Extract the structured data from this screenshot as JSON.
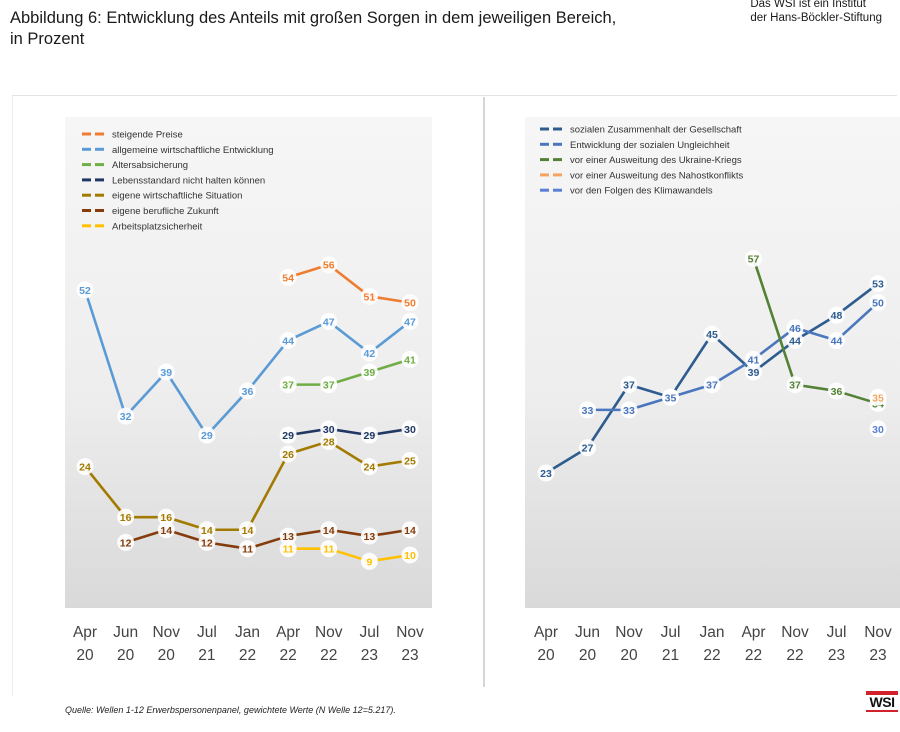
{
  "title": "Abbildung 6: Entwicklung des Anteils mit großen Sorgen in dem jeweiligen Bereich,",
  "title_line2": "in Prozent",
  "header_note_line1": "Das WSI ist ein Institut",
  "header_note_line2": "der Hans-Böckler-Stiftung",
  "source": "Quelle: Wellen 1-12 Erwerbspersonenpanel, gewichtete Werte (N Welle 12=5.217).",
  "logo_text": "WSI",
  "chart_data": [
    {
      "type": "line",
      "categories": [
        [
          "Apr",
          "20"
        ],
        [
          "Jun",
          "20"
        ],
        [
          "Nov",
          "20"
        ],
        [
          "Jul",
          "21"
        ],
        [
          "Jan",
          "22"
        ],
        [
          "Apr",
          "22"
        ],
        [
          "Nov",
          "22"
        ],
        [
          "Jul",
          "23"
        ],
        [
          "Nov",
          "23"
        ]
      ],
      "ylim": [
        0,
        70
      ],
      "legend_position": "top-left",
      "grid": false,
      "series": [
        {
          "name": "steigende Preise",
          "color": "#ee7d31",
          "values": [
            null,
            null,
            null,
            null,
            null,
            54,
            56,
            51,
            50
          ]
        },
        {
          "name": "allgemeine wirtschaftliche Entwicklung",
          "color": "#5b9bd5",
          "values": [
            52,
            32,
            39,
            29,
            36,
            44,
            47,
            42,
            47
          ]
        },
        {
          "name": "Altersabsicherung",
          "color": "#70ad47",
          "values": [
            null,
            null,
            null,
            null,
            null,
            37,
            37,
            39,
            41
          ]
        },
        {
          "name": "Lebensstandard nicht halten können",
          "color": "#203864",
          "values": [
            null,
            null,
            null,
            null,
            null,
            29,
            30,
            29,
            30
          ]
        },
        {
          "name": "eigene wirtschaftliche Situation",
          "color": "#a37a00",
          "values": [
            24,
            16,
            16,
            14,
            14,
            26,
            28,
            24,
            25
          ]
        },
        {
          "name": "eigene berufliche Zukunft",
          "color": "#843c0c",
          "values": [
            null,
            12,
            14,
            12,
            11,
            13,
            14,
            13,
            14
          ]
        },
        {
          "name": "Arbeitsplatzsicherheit",
          "color": "#ffc000",
          "values": [
            null,
            null,
            null,
            null,
            null,
            11,
            11,
            9,
            10
          ]
        }
      ]
    },
    {
      "type": "line",
      "categories": [
        [
          "Apr",
          "20"
        ],
        [
          "Jun",
          "20"
        ],
        [
          "Nov",
          "20"
        ],
        [
          "Jul",
          "21"
        ],
        [
          "Jan",
          "22"
        ],
        [
          "Apr",
          "22"
        ],
        [
          "Nov",
          "22"
        ],
        [
          "Jul",
          "23"
        ],
        [
          "Nov",
          "23"
        ]
      ],
      "ylim": [
        0,
        70
      ],
      "legend_position": "top-left",
      "grid": false,
      "series": [
        {
          "name": "sozialen Zusammenhalt der Gesellschaft",
          "color": "#2e5c8e",
          "values": [
            23,
            27,
            37,
            35,
            45,
            39,
            44,
            48,
            53
          ]
        },
        {
          "name": "Entwicklung der sozialen Ungleichheit",
          "color": "#4a76bd",
          "values": [
            null,
            33,
            33,
            35,
            37,
            41,
            46,
            44,
            50
          ]
        },
        {
          "name": "vor einer Ausweitung des Ukraine-Kriegs",
          "color": "#548235",
          "values": [
            null,
            null,
            null,
            null,
            null,
            57,
            37,
            36,
            34
          ]
        },
        {
          "name": "vor einer Ausweitung des Nahostkonflikts",
          "color": "#f4a460",
          "values": [
            null,
            null,
            null,
            null,
            null,
            null,
            null,
            null,
            35
          ]
        },
        {
          "name": "vor den Folgen des Klimawandels",
          "color": "#5a7fd6",
          "values": [
            null,
            null,
            null,
            null,
            null,
            null,
            null,
            null,
            30
          ]
        }
      ]
    }
  ]
}
